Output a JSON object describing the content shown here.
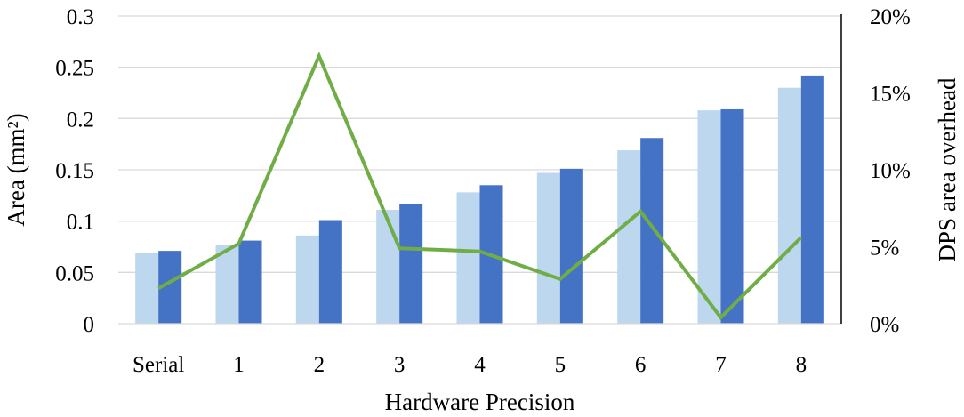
{
  "chart_data": {
    "type": "bar",
    "categories": [
      "Serial",
      "1",
      "2",
      "3",
      "4",
      "5",
      "6",
      "7",
      "8"
    ],
    "series": [
      {
        "values": [
          0.069,
          0.077,
          0.086,
          0.111,
          0.128,
          0.147,
          0.169,
          0.208,
          0.23
        ],
        "axis": "left",
        "type": "bar",
        "color": "#bdd7ee"
      },
      {
        "values": [
          0.071,
          0.081,
          0.101,
          0.117,
          0.135,
          0.151,
          0.181,
          0.209,
          0.242
        ],
        "axis": "left",
        "type": "bar",
        "color": "#4472c4"
      },
      {
        "values": [
          2.3,
          5.2,
          17.4,
          4.9,
          4.7,
          2.9,
          7.3,
          0.4,
          5.6
        ],
        "axis": "right",
        "type": "line",
        "color": "#70ad47"
      }
    ],
    "xlabel": "Hardware Precision",
    "ylabel": "Area (mm²)",
    "y2label": "DPS area overhead",
    "ylim": [
      0,
      0.3
    ],
    "y2lim": [
      0,
      20
    ],
    "yticks": [
      "0",
      "0.05",
      "0.1",
      "0.15",
      "0.2",
      "0.25",
      "0.3"
    ],
    "y2ticks": [
      "0%",
      "5%",
      "10%",
      "15%",
      "20%"
    ],
    "grid": true
  }
}
